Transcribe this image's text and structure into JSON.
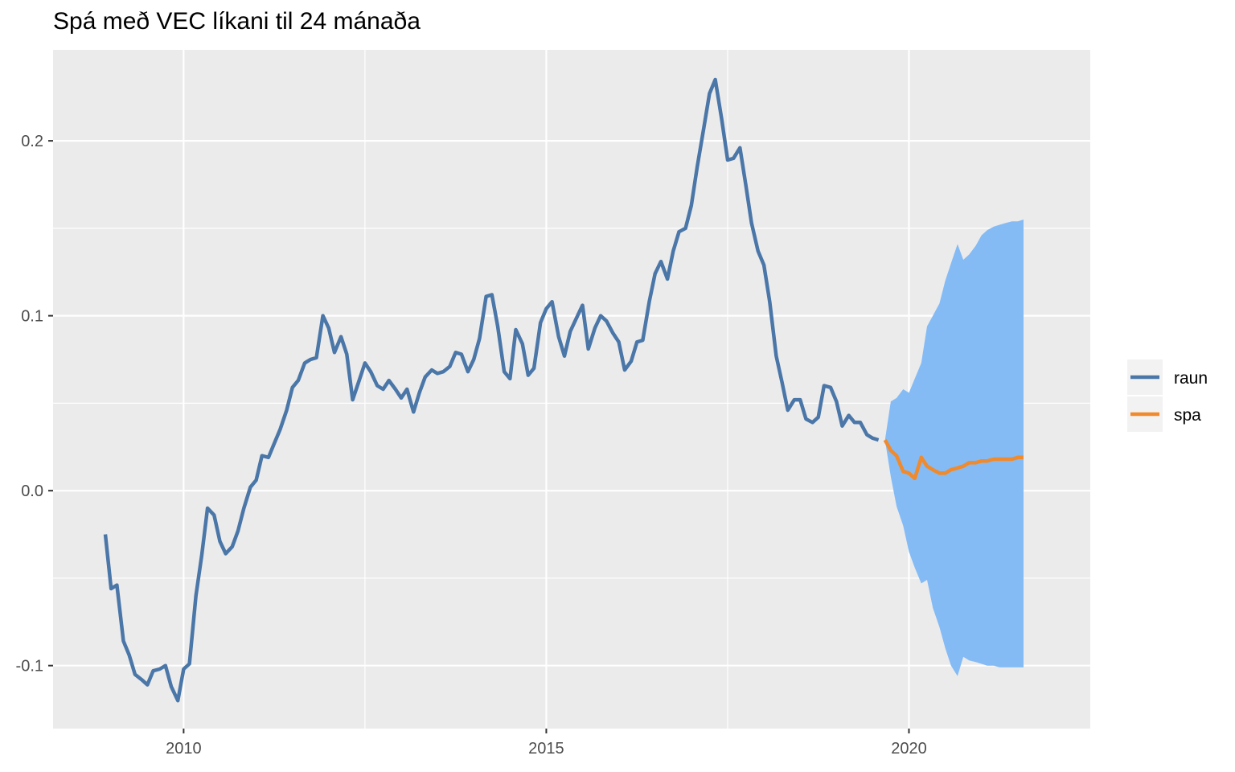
{
  "chart_data": {
    "type": "line",
    "title": "Spá með VEC líkani til 24 mánaða",
    "xlabel": "",
    "ylabel": "",
    "xlim": [
      2008.2,
      2022.5
    ],
    "ylim": [
      -0.136,
      0.252
    ],
    "x_ticks": [
      2010,
      2015,
      2020
    ],
    "x_tick_labels": [
      "2010",
      "2015",
      "2020"
    ],
    "y_ticks": [
      -0.1,
      0.0,
      0.1,
      0.2
    ],
    "y_tick_labels": [
      "-0.1",
      "0.0",
      "0.1",
      "0.2"
    ],
    "grid": true,
    "legend_position": "right",
    "colors": {
      "raun": "#4a76a8",
      "spa": "#f08a2c",
      "interval": "#84bbf5",
      "panel": "#ebebeb",
      "grid": "#ffffff"
    },
    "series": [
      {
        "name": "raun",
        "x": [
          2008.92,
          2009.0,
          2009.08,
          2009.17,
          2009.25,
          2009.33,
          2009.42,
          2009.5,
          2009.58,
          2009.67,
          2009.75,
          2009.83,
          2009.92,
          2010.0,
          2010.08,
          2010.17,
          2010.25,
          2010.33,
          2010.42,
          2010.5,
          2010.58,
          2010.67,
          2010.75,
          2010.83,
          2010.92,
          2011.0,
          2011.08,
          2011.17,
          2011.25,
          2011.33,
          2011.42,
          2011.5,
          2011.58,
          2011.67,
          2011.75,
          2011.83,
          2011.92,
          2012.0,
          2012.08,
          2012.17,
          2012.25,
          2012.33,
          2012.42,
          2012.5,
          2012.58,
          2012.67,
          2012.75,
          2012.83,
          2012.92,
          2013.0,
          2013.08,
          2013.17,
          2013.25,
          2013.33,
          2013.42,
          2013.5,
          2013.58,
          2013.67,
          2013.75,
          2013.83,
          2013.92,
          2014.0,
          2014.08,
          2014.17,
          2014.25,
          2014.33,
          2014.42,
          2014.5,
          2014.58,
          2014.67,
          2014.75,
          2014.83,
          2014.92,
          2015.0,
          2015.08,
          2015.17,
          2015.25,
          2015.33,
          2015.42,
          2015.5,
          2015.58,
          2015.67,
          2015.75,
          2015.83,
          2015.92,
          2016.0,
          2016.08,
          2016.17,
          2016.25,
          2016.33,
          2016.42,
          2016.5,
          2016.58,
          2016.67,
          2016.75,
          2016.83,
          2016.92,
          2017.0,
          2017.08,
          2017.17,
          2017.25,
          2017.33,
          2017.42,
          2017.5,
          2017.58,
          2017.67,
          2017.75,
          2017.83,
          2017.92,
          2018.0,
          2018.08,
          2018.17,
          2018.25,
          2018.33,
          2018.42,
          2018.5,
          2018.58,
          2018.67,
          2018.75,
          2018.83,
          2018.92,
          2019.0,
          2019.08,
          2019.17,
          2019.25,
          2019.33,
          2019.42,
          2019.5,
          2019.58
        ],
        "values": [
          -0.025,
          -0.056,
          -0.054,
          -0.086,
          -0.094,
          -0.105,
          -0.108,
          -0.111,
          -0.103,
          -0.102,
          -0.1,
          -0.112,
          -0.12,
          -0.102,
          -0.099,
          -0.06,
          -0.037,
          -0.01,
          -0.014,
          -0.029,
          -0.036,
          -0.032,
          -0.023,
          -0.01,
          0.002,
          0.006,
          0.02,
          0.019,
          0.027,
          0.035,
          0.046,
          0.059,
          0.063,
          0.073,
          0.075,
          0.076,
          0.1,
          0.093,
          0.079,
          0.088,
          0.078,
          0.052,
          0.063,
          0.073,
          0.068,
          0.06,
          0.058,
          0.063,
          0.058,
          0.053,
          0.058,
          0.045,
          0.056,
          0.065,
          0.069,
          0.067,
          0.068,
          0.071,
          0.079,
          0.078,
          0.068,
          0.075,
          0.087,
          0.111,
          0.112,
          0.094,
          0.068,
          0.064,
          0.092,
          0.084,
          0.066,
          0.07,
          0.096,
          0.104,
          0.108,
          0.088,
          0.077,
          0.091,
          0.099,
          0.106,
          0.081,
          0.093,
          0.1,
          0.097,
          0.09,
          0.085,
          0.069,
          0.074,
          0.085,
          0.086,
          0.108,
          0.124,
          0.131,
          0.121,
          0.137,
          0.148,
          0.15,
          0.163,
          0.185,
          0.207,
          0.227,
          0.235,
          0.212,
          0.189,
          0.19,
          0.196,
          0.175,
          0.153,
          0.137,
          0.129,
          0.108,
          0.077,
          0.062,
          0.046,
          0.052,
          0.052,
          0.041,
          0.039,
          0.042,
          0.06,
          0.059,
          0.051,
          0.037,
          0.043,
          0.039,
          0.039,
          0.032,
          0.03,
          0.029
        ]
      },
      {
        "name": "spa",
        "x": [
          2019.67,
          2019.75,
          2019.83,
          2019.92,
          2020.0,
          2020.08,
          2020.17,
          2020.25,
          2020.33,
          2020.42,
          2020.5,
          2020.58,
          2020.67,
          2020.75,
          2020.83,
          2020.92,
          2021.0,
          2021.08,
          2021.17,
          2021.25,
          2021.33,
          2021.42,
          2021.5,
          2021.58
        ],
        "values": [
          0.029,
          0.023,
          0.02,
          0.011,
          0.01,
          0.007,
          0.019,
          0.014,
          0.012,
          0.01,
          0.01,
          0.012,
          0.013,
          0.014,
          0.016,
          0.016,
          0.017,
          0.017,
          0.018,
          0.018,
          0.018,
          0.018,
          0.019,
          0.019
        ],
        "lower": [
          0.029,
          0.008,
          -0.009,
          -0.02,
          -0.035,
          -0.044,
          -0.053,
          -0.051,
          -0.067,
          -0.078,
          -0.09,
          -0.1,
          -0.106,
          -0.095,
          -0.097,
          -0.098,
          -0.099,
          -0.1,
          -0.1,
          -0.101,
          -0.101,
          -0.101,
          -0.101,
          -0.101
        ],
        "upper": [
          0.029,
          0.051,
          0.053,
          0.058,
          0.056,
          0.064,
          0.073,
          0.094,
          0.1,
          0.107,
          0.12,
          0.13,
          0.141,
          0.132,
          0.135,
          0.14,
          0.146,
          0.149,
          0.151,
          0.152,
          0.153,
          0.154,
          0.154,
          0.155
        ]
      }
    ]
  }
}
